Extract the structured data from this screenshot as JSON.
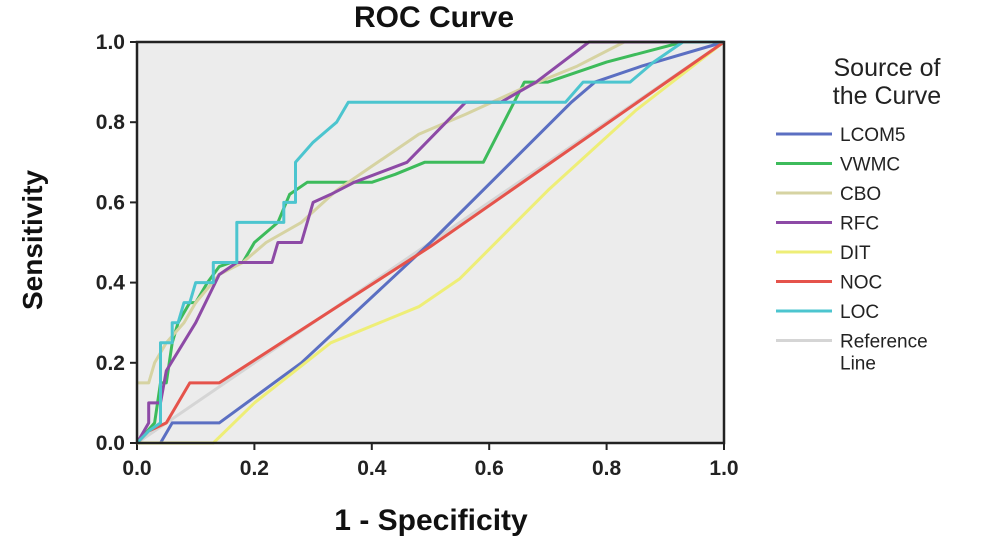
{
  "chart_data": {
    "type": "line",
    "title": "ROC Curve",
    "xlabel": "1 - Specificity",
    "ylabel": "Sensitivity",
    "xlim": [
      0,
      1
    ],
    "ylim": [
      0,
      1
    ],
    "x_ticks": [
      "0.0",
      "0.2",
      "0.4",
      "0.6",
      "0.8",
      "1.0"
    ],
    "y_ticks": [
      "0.0",
      "0.2",
      "0.4",
      "0.6",
      "0.8",
      "1.0"
    ],
    "grid": false,
    "plot_background": "#ececec",
    "legend": {
      "title_lines": [
        "Source of",
        "the Curve"
      ],
      "placement": "right"
    },
    "series": [
      {
        "name": "LCOM5",
        "color": "#5b6fc2",
        "x": [
          0,
          0.04,
          0.06,
          0.14,
          0.28,
          0.5,
          0.74,
          0.78,
          0.86,
          1.0
        ],
        "y": [
          0,
          0,
          0.05,
          0.05,
          0.2,
          0.5,
          0.85,
          0.9,
          0.94,
          1.0
        ]
      },
      {
        "name": "VWMC",
        "color": "#3dbb5b",
        "x": [
          0,
          0.03,
          0.04,
          0.05,
          0.06,
          0.07,
          0.09,
          0.1,
          0.12,
          0.14,
          0.16,
          0.18,
          0.2,
          0.24,
          0.26,
          0.29,
          0.37,
          0.4,
          0.44,
          0.49,
          0.59,
          0.66,
          0.7,
          0.8,
          0.93,
          1.0
        ],
        "y": [
          0,
          0.05,
          0.15,
          0.15,
          0.25,
          0.3,
          0.35,
          0.35,
          0.4,
          0.44,
          0.45,
          0.45,
          0.5,
          0.55,
          0.62,
          0.65,
          0.65,
          0.65,
          0.67,
          0.7,
          0.7,
          0.9,
          0.9,
          0.95,
          1.0,
          1.0
        ]
      },
      {
        "name": "CBO",
        "color": "#d6d3a2",
        "x": [
          0,
          0.01,
          0.02,
          0.03,
          0.05,
          0.08,
          0.1,
          0.14,
          0.18,
          0.22,
          0.28,
          0.34,
          0.4,
          0.48,
          0.56,
          0.65,
          0.75,
          0.83,
          1.0
        ],
        "y": [
          0.15,
          0.15,
          0.15,
          0.2,
          0.25,
          0.3,
          0.35,
          0.42,
          0.45,
          0.5,
          0.55,
          0.63,
          0.69,
          0.77,
          0.82,
          0.88,
          0.94,
          1.0,
          1.0
        ]
      },
      {
        "name": "RFC",
        "color": "#8d4aa6",
        "x": [
          0,
          0.02,
          0.02,
          0.04,
          0.05,
          0.1,
          0.14,
          0.17,
          0.2,
          0.23,
          0.24,
          0.26,
          0.28,
          0.3,
          0.33,
          0.37,
          0.46,
          0.56,
          0.62,
          0.68,
          0.77,
          1.0
        ],
        "y": [
          0,
          0.05,
          0.1,
          0.1,
          0.18,
          0.3,
          0.42,
          0.45,
          0.45,
          0.45,
          0.5,
          0.5,
          0.5,
          0.6,
          0.62,
          0.65,
          0.7,
          0.85,
          0.85,
          0.9,
          1.0,
          1.0
        ]
      },
      {
        "name": "DIT",
        "color": "#eeee77",
        "x": [
          0,
          0.13,
          0.2,
          0.33,
          0.48,
          0.55,
          0.7,
          0.85,
          1.0
        ],
        "y": [
          0,
          0,
          0.1,
          0.25,
          0.34,
          0.41,
          0.63,
          0.83,
          1.0
        ]
      },
      {
        "name": "NOC",
        "color": "#e5534b",
        "x": [
          0,
          0.02,
          0.05,
          0.09,
          0.1,
          0.14,
          0.5,
          1.0
        ],
        "y": [
          0,
          0.03,
          0.05,
          0.15,
          0.15,
          0.15,
          0.49,
          1.0
        ]
      },
      {
        "name": "LOC",
        "color": "#4cc5cf",
        "x": [
          0,
          0.02,
          0.04,
          0.04,
          0.05,
          0.06,
          0.06,
          0.07,
          0.08,
          0.08,
          0.09,
          0.1,
          0.1,
          0.13,
          0.13,
          0.17,
          0.17,
          0.2,
          0.25,
          0.25,
          0.27,
          0.27,
          0.3,
          0.34,
          0.36,
          0.4,
          0.73,
          0.73,
          0.76,
          0.84,
          0.88,
          0.93,
          1.0
        ],
        "y": [
          0,
          0.03,
          0.05,
          0.25,
          0.25,
          0.25,
          0.3,
          0.3,
          0.35,
          0.35,
          0.35,
          0.4,
          0.4,
          0.4,
          0.45,
          0.45,
          0.55,
          0.55,
          0.55,
          0.6,
          0.6,
          0.7,
          0.75,
          0.8,
          0.85,
          0.85,
          0.85,
          0.85,
          0.9,
          0.9,
          0.95,
          1.0,
          1.0
        ]
      },
      {
        "name": "Reference Line",
        "color": "#d5d5d5",
        "x": [
          0,
          1
        ],
        "y": [
          0,
          1
        ]
      }
    ]
  }
}
